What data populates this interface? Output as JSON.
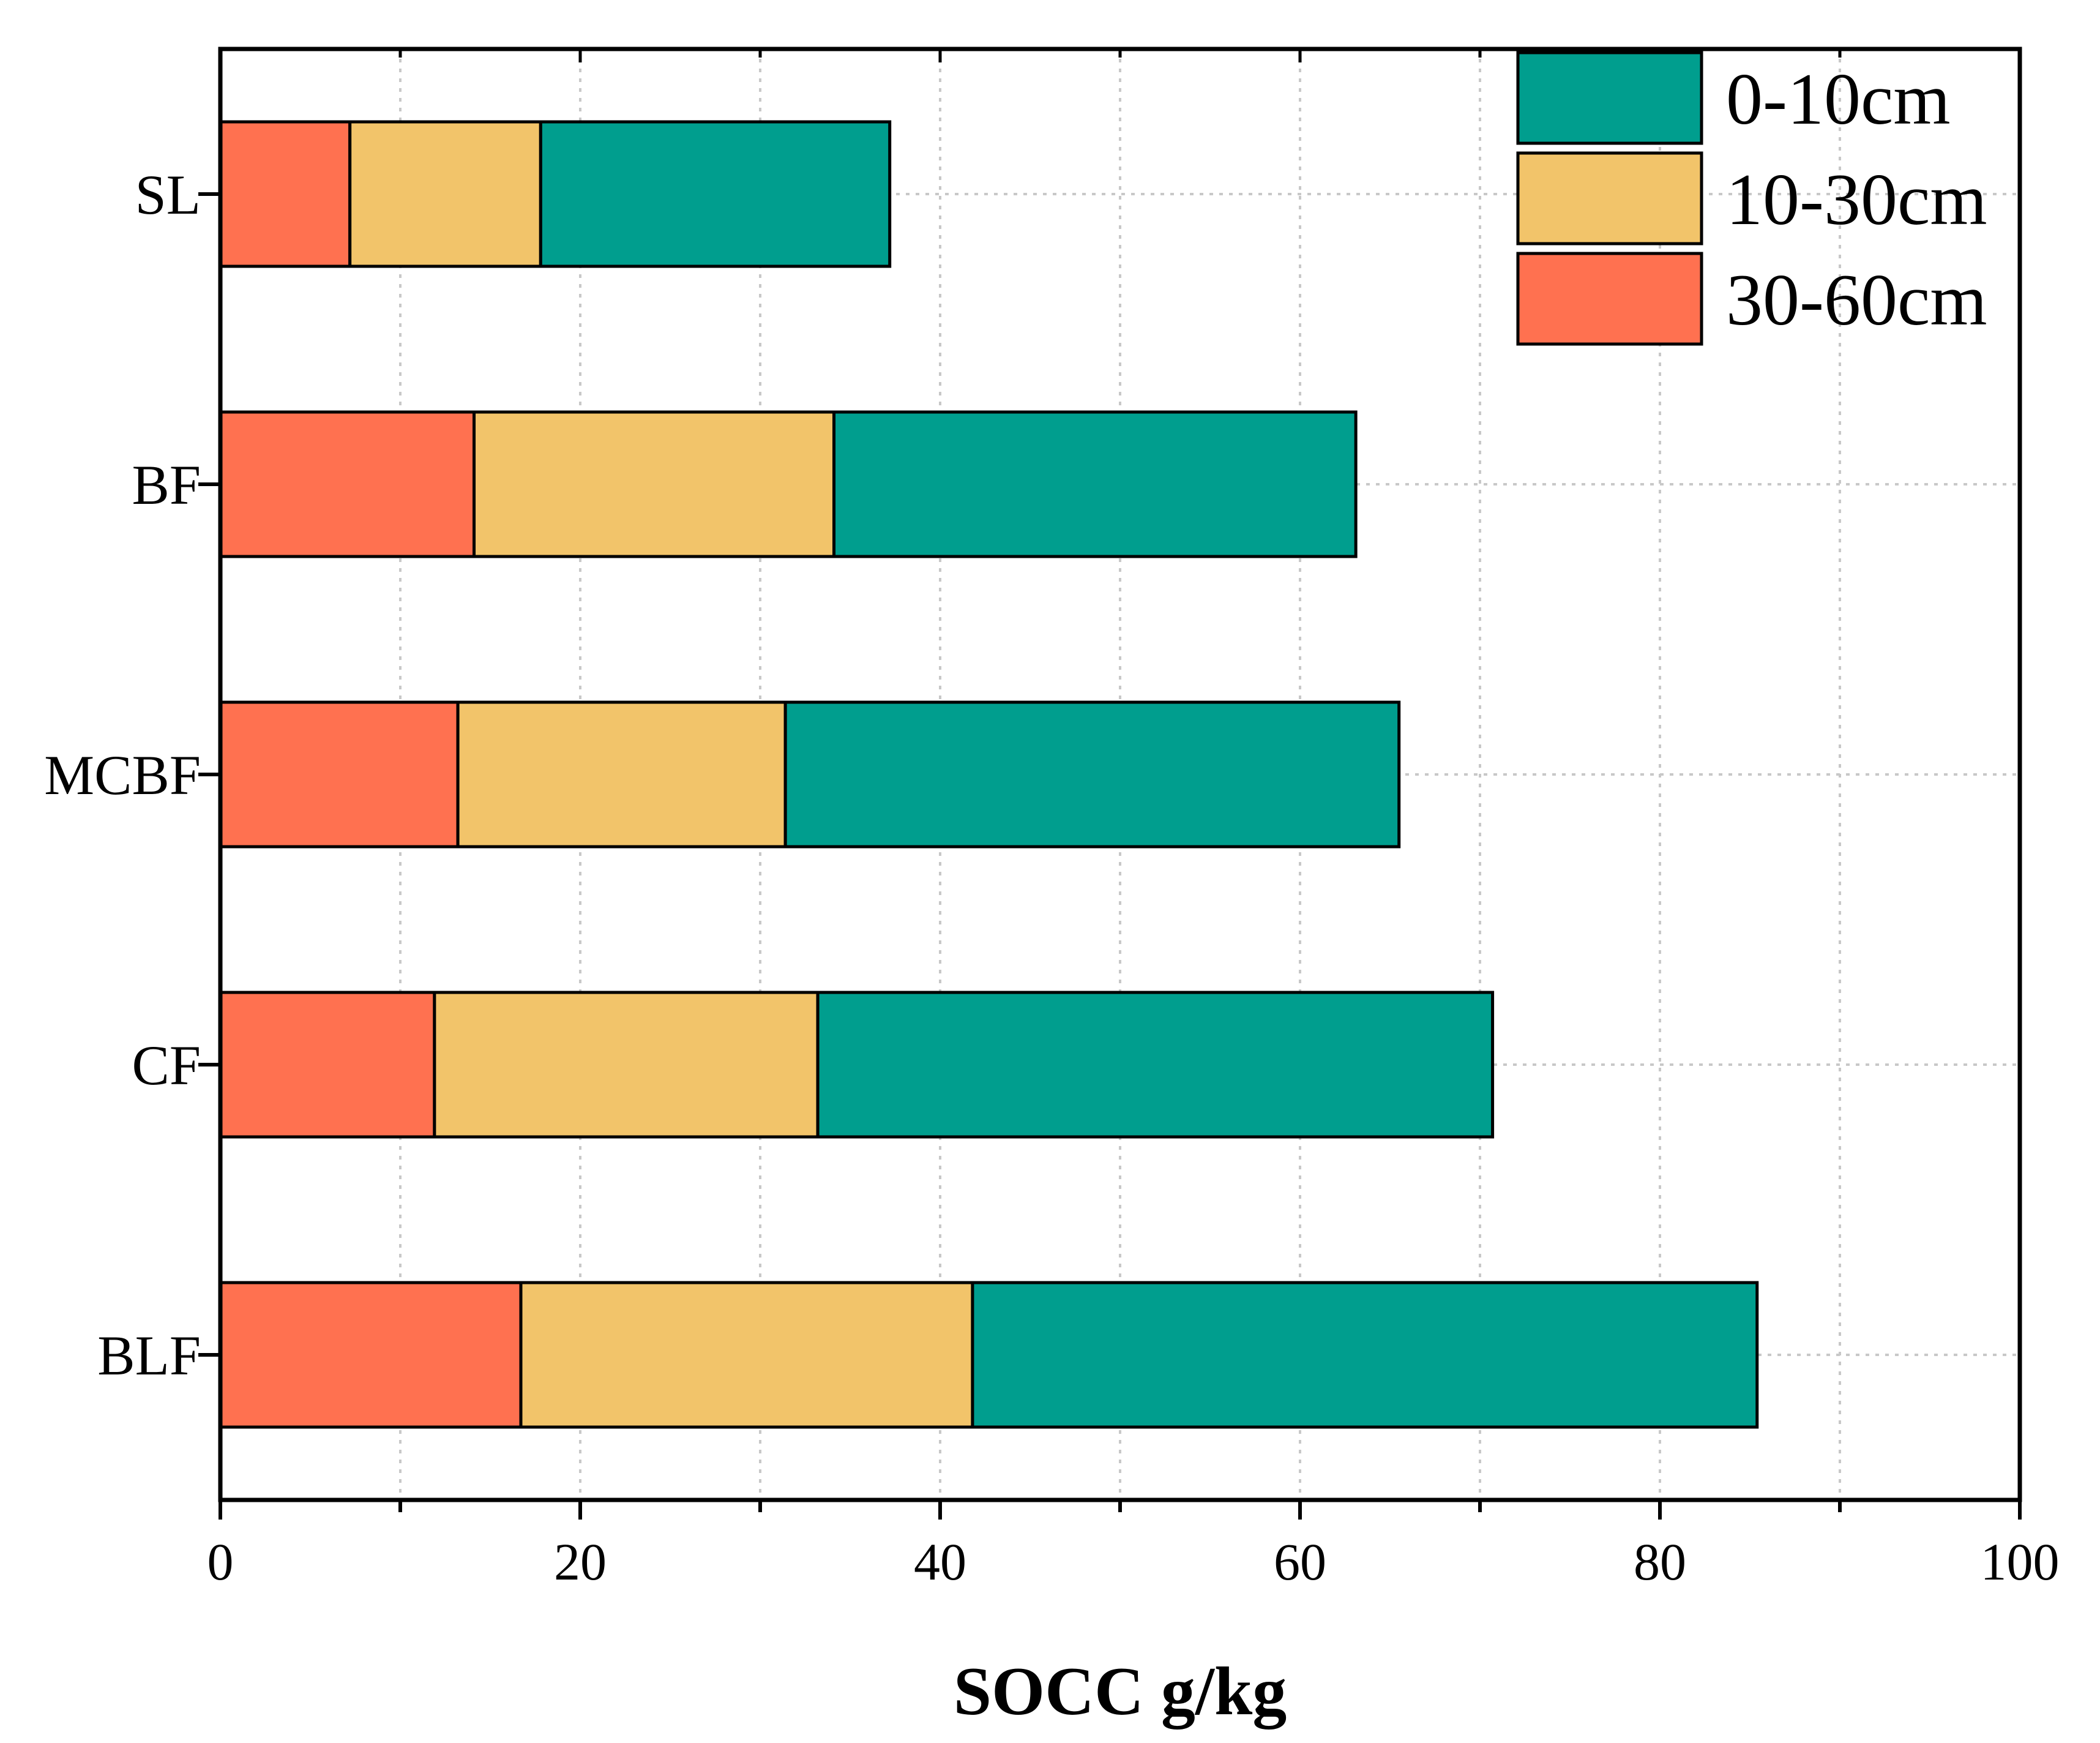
{
  "chart_data": {
    "type": "bar",
    "orientation": "horizontal",
    "stacked": true,
    "categories": [
      "SL",
      "BF",
      "MCBF",
      "CF",
      "BLF"
    ],
    "series": [
      {
        "name": "30-60cm",
        "color": "#FF7150",
        "values": [
          7.2,
          14.1,
          13.2,
          11.9,
          16.7
        ]
      },
      {
        "name": "10-30cm",
        "color": "#F2C46A",
        "values": [
          10.6,
          20.0,
          18.2,
          21.3,
          25.1
        ]
      },
      {
        "name": "0-10cm",
        "color": "#009E8E",
        "values": [
          19.4,
          29.0,
          34.1,
          37.5,
          43.6
        ]
      }
    ],
    "legend_order": [
      "0-10cm",
      "10-30cm",
      "30-60cm"
    ],
    "legend_position": "top-right",
    "xlabel": "SOCC g/kg",
    "ylabel": "",
    "xlim": [
      0,
      100
    ],
    "xticks": [
      "0",
      "20",
      "40",
      "60",
      "80",
      "100"
    ],
    "grid": "dotted",
    "grid_color": "#C8C8C8"
  }
}
